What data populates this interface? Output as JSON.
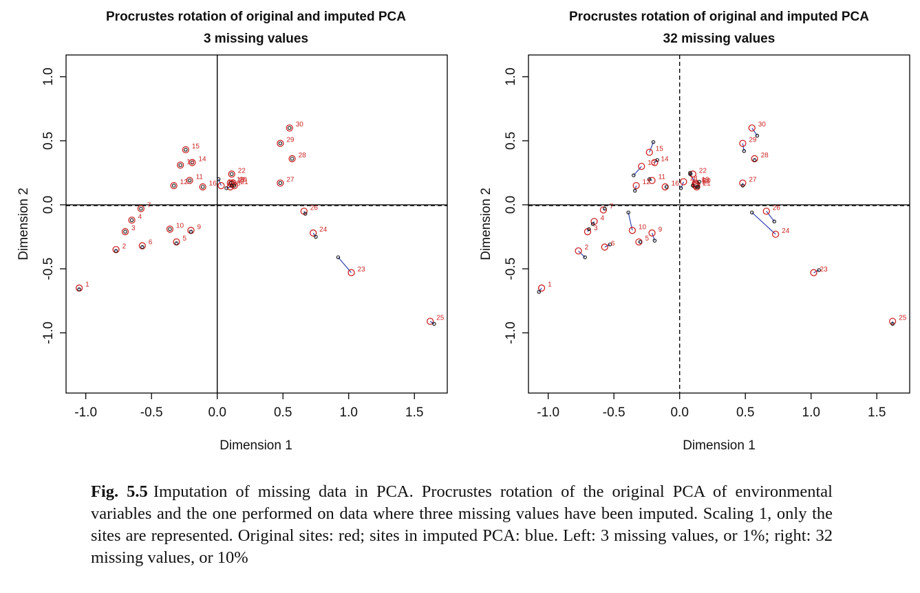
{
  "charts": [
    {
      "title": "Procrustes rotation of original and imputed PCA",
      "subtitle": "3 missing values"
    },
    {
      "title": "Procrustes rotation of original and imputed PCA",
      "subtitle": "32 missing values"
    }
  ],
  "caption": {
    "label": "Fig. 5.5",
    "text": "Imputation of missing data in PCA. Procrustes rotation of the original PCA of environmental variables and the one performed on data where three missing values have been imputed. Scaling 1, only the sites are represented. Original sites: red; sites in imputed PCA: blue. Left: 3 missing values, or 1%; right: 32 missing values, or 10%"
  },
  "colors": {
    "original": "#cc2222",
    "imputed": "#111111",
    "segment": "#2233aa",
    "axes": "#000000"
  },
  "chart_data": [
    {
      "type": "scatter",
      "title": "Procrustes rotation of original and imputed PCA",
      "subtitle": "3 missing values",
      "xlabel": "Dimension 1",
      "ylabel": "Dimension 2",
      "xlim": [
        -1.15,
        1.75
      ],
      "ylim": [
        -1.47,
        1.17
      ],
      "xticks": [
        -1.0,
        -0.5,
        0.0,
        0.5,
        1.0,
        1.5
      ],
      "xtick_labels": [
        "-1.0",
        "-0.5",
        "0.0",
        "0.5",
        "1.0",
        "1.5"
      ],
      "yticks": [
        1.0,
        0.5,
        0.0,
        -0.5,
        -1.0
      ],
      "ytick_labels": [
        "1.0",
        "0.5",
        "0.0",
        "-0.5",
        "-1.0"
      ],
      "series": [
        {
          "name": "Original sites",
          "color": "red",
          "points": [
            {
              "id": "1",
              "x": -1.05,
              "y": -0.65
            },
            {
              "id": "2",
              "x": -0.77,
              "y": -0.35
            },
            {
              "id": "3",
              "x": -0.7,
              "y": -0.21
            },
            {
              "id": "4",
              "x": -0.65,
              "y": -0.12
            },
            {
              "id": "5",
              "x": -0.31,
              "y": -0.29
            },
            {
              "id": "6",
              "x": -0.57,
              "y": -0.32
            },
            {
              "id": "7",
              "x": -0.58,
              "y": -0.03
            },
            {
              "id": "8",
              "x": 0.1,
              "y": 0.14
            },
            {
              "id": "9",
              "x": -0.2,
              "y": -0.2
            },
            {
              "id": "10",
              "x": -0.36,
              "y": -0.19
            },
            {
              "id": "11",
              "x": -0.21,
              "y": 0.19
            },
            {
              "id": "12",
              "x": -0.33,
              "y": 0.15
            },
            {
              "id": "13",
              "x": -0.28,
              "y": 0.31
            },
            {
              "id": "14",
              "x": -0.19,
              "y": 0.33
            },
            {
              "id": "15",
              "x": -0.24,
              "y": 0.43
            },
            {
              "id": "16",
              "x": -0.11,
              "y": 0.14
            },
            {
              "id": "17",
              "x": 0.11,
              "y": 0.16
            },
            {
              "id": "18",
              "x": 0.03,
              "y": 0.15
            },
            {
              "id": "19",
              "x": 0.1,
              "y": 0.17
            },
            {
              "id": "20",
              "x": 0.12,
              "y": 0.17
            },
            {
              "id": "21",
              "x": 0.13,
              "y": 0.15
            },
            {
              "id": "22",
              "x": 0.11,
              "y": 0.24
            },
            {
              "id": "23",
              "x": 1.02,
              "y": -0.53
            },
            {
              "id": "24",
              "x": 0.73,
              "y": -0.22
            },
            {
              "id": "25",
              "x": 1.62,
              "y": -0.91
            },
            {
              "id": "26",
              "x": 0.66,
              "y": -0.05
            },
            {
              "id": "27",
              "x": 0.48,
              "y": 0.17
            },
            {
              "id": "28",
              "x": 0.57,
              "y": 0.36
            },
            {
              "id": "29",
              "x": 0.48,
              "y": 0.48
            },
            {
              "id": "30",
              "x": 0.55,
              "y": 0.6
            }
          ]
        },
        {
          "name": "Imputed sites",
          "color": "blue",
          "points": [
            {
              "id": "1",
              "x": -1.05,
              "y": -0.66
            },
            {
              "id": "2",
              "x": -0.77,
              "y": -0.36
            },
            {
              "id": "3",
              "x": -0.7,
              "y": -0.21
            },
            {
              "id": "4",
              "x": -0.65,
              "y": -0.12
            },
            {
              "id": "5",
              "x": -0.31,
              "y": -0.3
            },
            {
              "id": "6",
              "x": -0.57,
              "y": -0.33
            },
            {
              "id": "7",
              "x": -0.58,
              "y": -0.03
            },
            {
              "id": "8",
              "x": 0.07,
              "y": 0.13
            },
            {
              "id": "9",
              "x": -0.2,
              "y": -0.21
            },
            {
              "id": "10",
              "x": -0.36,
              "y": -0.19
            },
            {
              "id": "11",
              "x": -0.21,
              "y": 0.19
            },
            {
              "id": "12",
              "x": -0.33,
              "y": 0.15
            },
            {
              "id": "13",
              "x": -0.28,
              "y": 0.31
            },
            {
              "id": "14",
              "x": -0.19,
              "y": 0.33
            },
            {
              "id": "15",
              "x": -0.24,
              "y": 0.43
            },
            {
              "id": "16",
              "x": -0.11,
              "y": 0.14
            },
            {
              "id": "17",
              "x": 0.11,
              "y": 0.15
            },
            {
              "id": "18",
              "x": 0.01,
              "y": 0.2
            },
            {
              "id": "19",
              "x": 0.1,
              "y": 0.17
            },
            {
              "id": "20",
              "x": 0.12,
              "y": 0.17
            },
            {
              "id": "21",
              "x": 0.13,
              "y": 0.15
            },
            {
              "id": "22",
              "x": 0.11,
              "y": 0.24
            },
            {
              "id": "23",
              "x": 0.92,
              "y": -0.41
            },
            {
              "id": "24",
              "x": 0.75,
              "y": -0.25
            },
            {
              "id": "25",
              "x": 1.65,
              "y": -0.93
            },
            {
              "id": "26",
              "x": 0.67,
              "y": -0.07
            },
            {
              "id": "27",
              "x": 0.48,
              "y": 0.17
            },
            {
              "id": "28",
              "x": 0.57,
              "y": 0.36
            },
            {
              "id": "29",
              "x": 0.48,
              "y": 0.48
            },
            {
              "id": "30",
              "x": 0.55,
              "y": 0.6
            }
          ]
        }
      ]
    },
    {
      "type": "scatter",
      "title": "Procrustes rotation of original and imputed PCA",
      "subtitle": "32 missing values",
      "xlabel": "Dimension 1",
      "ylabel": "Dimension 2",
      "xlim": [
        -1.15,
        1.75
      ],
      "ylim": [
        -1.47,
        1.17
      ],
      "xticks": [
        -1.0,
        -0.5,
        0.0,
        0.5,
        1.0,
        1.5
      ],
      "xtick_labels": [
        "-1.0",
        "-0.5",
        "0.0",
        "0.5",
        "1.0",
        "1.5"
      ],
      "yticks": [
        1.0,
        0.5,
        0.0,
        -0.5,
        -1.0
      ],
      "ytick_labels": [
        "1.0",
        "0.5",
        "0.0",
        "-0.5",
        "-1.0"
      ],
      "series": [
        {
          "name": "Original sites",
          "color": "red",
          "points": [
            {
              "id": "1",
              "x": -1.05,
              "y": -0.65
            },
            {
              "id": "2",
              "x": -0.77,
              "y": -0.36
            },
            {
              "id": "3",
              "x": -0.7,
              "y": -0.21
            },
            {
              "id": "4",
              "x": -0.65,
              "y": -0.13
            },
            {
              "id": "5",
              "x": -0.31,
              "y": -0.29
            },
            {
              "id": "6",
              "x": -0.57,
              "y": -0.33
            },
            {
              "id": "7",
              "x": -0.58,
              "y": -0.04
            },
            {
              "id": "8",
              "x": 0.12,
              "y": 0.16
            },
            {
              "id": "9",
              "x": -0.21,
              "y": -0.22
            },
            {
              "id": "10",
              "x": -0.36,
              "y": -0.2
            },
            {
              "id": "11",
              "x": -0.21,
              "y": 0.19
            },
            {
              "id": "12",
              "x": -0.33,
              "y": 0.15
            },
            {
              "id": "13",
              "x": -0.29,
              "y": 0.3
            },
            {
              "id": "14",
              "x": -0.19,
              "y": 0.33
            },
            {
              "id": "15",
              "x": -0.23,
              "y": 0.41
            },
            {
              "id": "16",
              "x": -0.11,
              "y": 0.14
            },
            {
              "id": "17",
              "x": 0.12,
              "y": 0.15
            },
            {
              "id": "18",
              "x": 0.03,
              "y": 0.18
            },
            {
              "id": "19",
              "x": 0.12,
              "y": 0.17
            },
            {
              "id": "20",
              "x": 0.13,
              "y": 0.16
            },
            {
              "id": "21",
              "x": 0.13,
              "y": 0.14
            },
            {
              "id": "22",
              "x": 0.1,
              "y": 0.24
            },
            {
              "id": "23",
              "x": 1.02,
              "y": -0.53
            },
            {
              "id": "24",
              "x": 0.73,
              "y": -0.23
            },
            {
              "id": "25",
              "x": 1.62,
              "y": -0.91
            },
            {
              "id": "26",
              "x": 0.66,
              "y": -0.05
            },
            {
              "id": "27",
              "x": 0.48,
              "y": 0.17
            },
            {
              "id": "28",
              "x": 0.57,
              "y": 0.36
            },
            {
              "id": "29",
              "x": 0.48,
              "y": 0.48
            },
            {
              "id": "30",
              "x": 0.55,
              "y": 0.6
            }
          ]
        },
        {
          "name": "Imputed sites",
          "color": "blue",
          "points": [
            {
              "id": "1",
              "x": -1.07,
              "y": -0.68
            },
            {
              "id": "2",
              "x": -0.72,
              "y": -0.41
            },
            {
              "id": "3",
              "x": -0.69,
              "y": -0.19
            },
            {
              "id": "4",
              "x": -0.66,
              "y": -0.15
            },
            {
              "id": "5",
              "x": -0.3,
              "y": -0.29
            },
            {
              "id": "6",
              "x": -0.53,
              "y": -0.31
            },
            {
              "id": "7",
              "x": -0.57,
              "y": -0.03
            },
            {
              "id": "8",
              "x": 0.1,
              "y": 0.15
            },
            {
              "id": "9",
              "x": -0.19,
              "y": -0.28
            },
            {
              "id": "10",
              "x": -0.39,
              "y": -0.06
            },
            {
              "id": "11",
              "x": -0.23,
              "y": 0.2
            },
            {
              "id": "12",
              "x": -0.34,
              "y": 0.11
            },
            {
              "id": "13",
              "x": -0.35,
              "y": 0.23
            },
            {
              "id": "14",
              "x": -0.17,
              "y": 0.35
            },
            {
              "id": "15",
              "x": -0.2,
              "y": 0.49
            },
            {
              "id": "16",
              "x": -0.1,
              "y": 0.14
            },
            {
              "id": "17",
              "x": 0.13,
              "y": 0.14
            },
            {
              "id": "18",
              "x": 0.01,
              "y": 0.13
            },
            {
              "id": "19",
              "x": 0.08,
              "y": 0.24
            },
            {
              "id": "20",
              "x": 0.15,
              "y": 0.18
            },
            {
              "id": "21",
              "x": 0.14,
              "y": 0.14
            },
            {
              "id": "22",
              "x": 0.08,
              "y": 0.25
            },
            {
              "id": "23",
              "x": 1.06,
              "y": -0.51
            },
            {
              "id": "24",
              "x": 0.55,
              "y": -0.06
            },
            {
              "id": "25",
              "x": 1.62,
              "y": -0.93
            },
            {
              "id": "26",
              "x": 0.72,
              "y": -0.13
            },
            {
              "id": "27",
              "x": 0.48,
              "y": 0.15
            },
            {
              "id": "28",
              "x": 0.57,
              "y": 0.35
            },
            {
              "id": "29",
              "x": 0.49,
              "y": 0.42
            },
            {
              "id": "30",
              "x": 0.59,
              "y": 0.54
            }
          ]
        }
      ]
    }
  ]
}
